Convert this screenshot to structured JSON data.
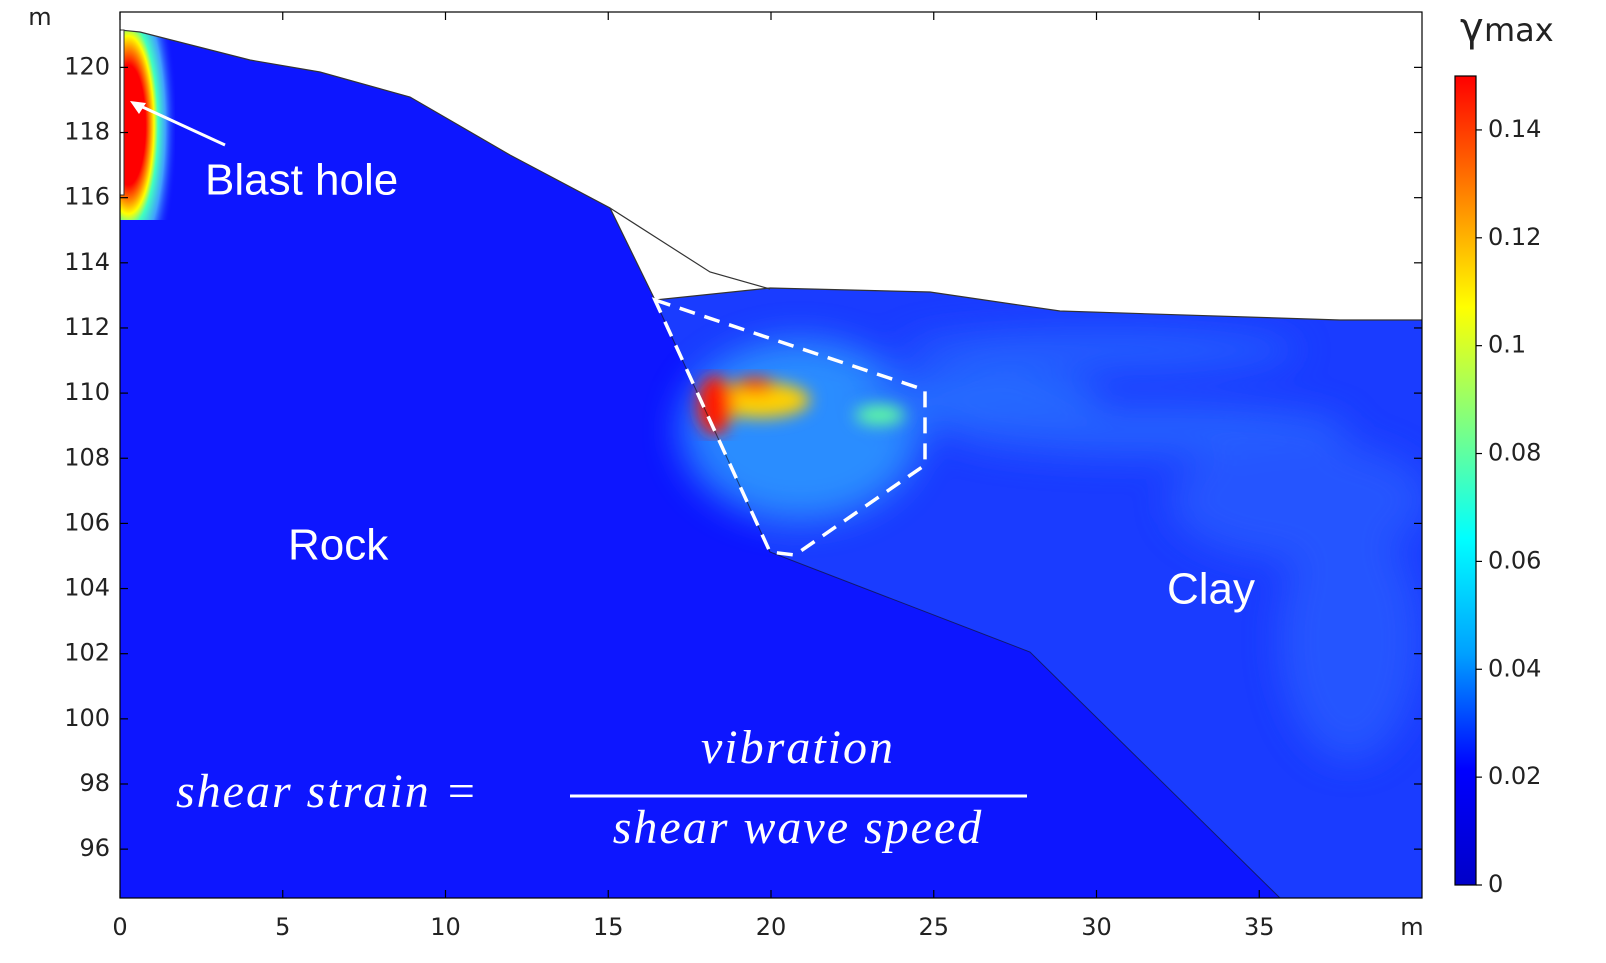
{
  "chart_data": {
    "type": "field",
    "x_unit": "m",
    "y_unit": "m",
    "xlim": [
      0,
      40
    ],
    "xticks": [
      0,
      5,
      10,
      15,
      20,
      25,
      30,
      35
    ],
    "ylim": [
      94.5,
      121.7
    ],
    "yticks": [
      96,
      98,
      100,
      102,
      104,
      106,
      108,
      110,
      112,
      114,
      116,
      118,
      120
    ],
    "colorbar": {
      "title": "γ",
      "title_subscript": "max",
      "lim": [
        0,
        0.15
      ],
      "ticks": [
        0,
        0.02,
        0.04,
        0.06,
        0.08,
        0.1,
        0.12,
        0.14
      ],
      "colors": [
        "#0000c8",
        "#0000ff",
        "#00a0ff",
        "#00ffff",
        "#80ff80",
        "#ffff00",
        "#ff8000",
        "#ff0000"
      ]
    },
    "annotations": {
      "blast_hole": "Blast hole",
      "rock": "Rock",
      "clay": "Clay"
    },
    "formula": {
      "lhs": "shear strain =",
      "numerator": "vibration",
      "denominator": "shear wave speed"
    }
  }
}
